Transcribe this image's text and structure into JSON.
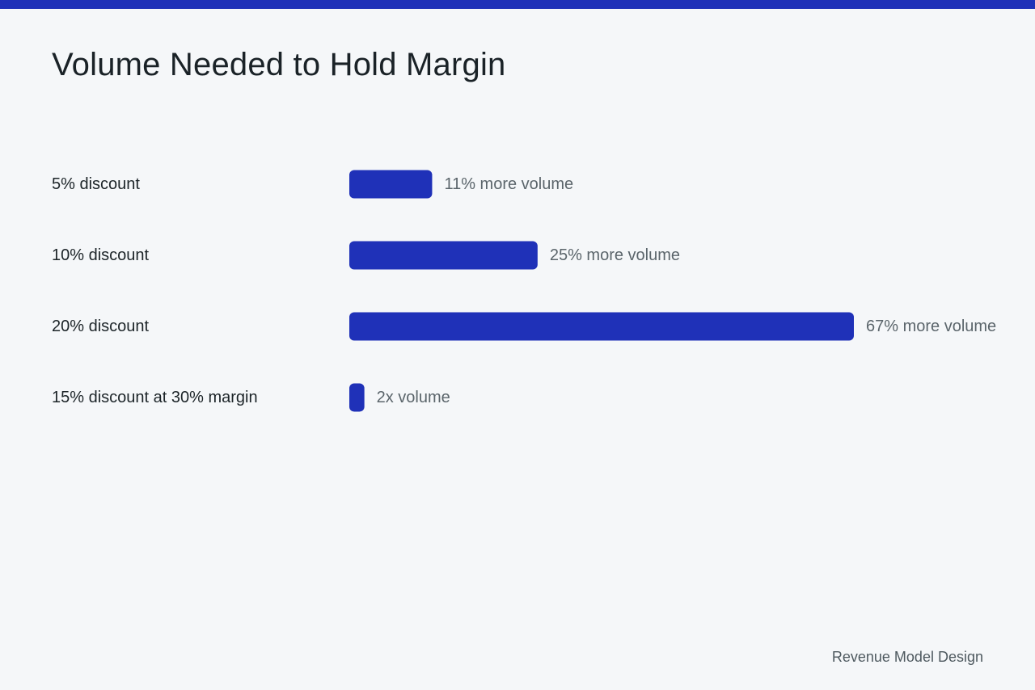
{
  "title": "Volume Needed to Hold Margin",
  "footer": "Revenue Model Design",
  "colors": {
    "accent": "#1f31b8",
    "category_text": "#1c2428",
    "value_text": "#5b656b",
    "background": "#f5f7f9"
  },
  "chart_data": {
    "type": "bar",
    "orientation": "horizontal",
    "categories": [
      "5% discount",
      "10% discount",
      "20% discount",
      "15% discount at 30% margin"
    ],
    "values": [
      11,
      25,
      67,
      2
    ],
    "data_labels": [
      "11% more volume",
      "25% more volume",
      "67% more volume",
      "2x volume"
    ],
    "xlim": [
      0,
      67
    ],
    "grid": false,
    "legend": "none"
  }
}
